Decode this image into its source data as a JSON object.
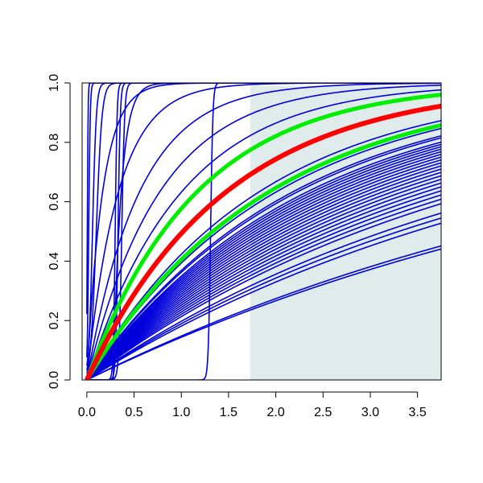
{
  "chart_data": {
    "type": "line",
    "title": "",
    "xlabel": "",
    "ylabel": "",
    "xlim": [
      -0.05,
      3.75
    ],
    "ylim": [
      0,
      1
    ],
    "grid": false,
    "legend": "none",
    "x_ticks": [
      "0.0",
      "0.5",
      "1.0",
      "1.5",
      "2.0",
      "2.5",
      "3.0",
      "3.5"
    ],
    "y_ticks": [
      "0.0",
      "0.2",
      "0.4",
      "0.6",
      "0.8",
      "1.0"
    ],
    "shaded_region": {
      "x_from": 1.73,
      "x_to": 3.75,
      "y_from": 0,
      "y_to": 0.99,
      "color": "#e0ecec"
    },
    "colors": {
      "samples": "#0000dd",
      "estimate": "#ff0000",
      "bounds": "#00ee00",
      "shade": "#e0ecec"
    },
    "series": [
      {
        "role": "sample",
        "model": "exp",
        "rate": 6.0,
        "shift": 0
      },
      {
        "role": "sample",
        "model": "exp",
        "rate": 3.0,
        "shift": 0
      },
      {
        "role": "sample",
        "model": "exp",
        "rate": 1.8,
        "shift": 0
      },
      {
        "role": "sample",
        "model": "exp",
        "rate": 1.3,
        "shift": 0
      },
      {
        "role": "sample",
        "model": "exp",
        "rate": 1.0,
        "shift": 0
      },
      {
        "role": "sample",
        "model": "exp",
        "rate": 0.55,
        "shift": 0
      },
      {
        "role": "sample",
        "model": "exp",
        "rate": 0.5,
        "shift": 0
      },
      {
        "role": "sample",
        "model": "exp",
        "rate": 0.45,
        "shift": 0
      },
      {
        "role": "sample",
        "model": "exp",
        "rate": 0.42,
        "shift": 0
      },
      {
        "role": "sample",
        "model": "exp",
        "rate": 0.4,
        "shift": 0
      },
      {
        "role": "sample",
        "model": "exp",
        "rate": 0.38,
        "shift": 0
      },
      {
        "role": "sample",
        "model": "exp",
        "rate": 0.36,
        "shift": 0
      },
      {
        "role": "sample",
        "model": "exp",
        "rate": 0.34,
        "shift": 0
      },
      {
        "role": "sample",
        "model": "exp",
        "rate": 0.32,
        "shift": 0
      },
      {
        "role": "sample",
        "model": "exp",
        "rate": 0.3,
        "shift": 0
      },
      {
        "role": "sample",
        "model": "exp",
        "rate": 0.28,
        "shift": 0
      },
      {
        "role": "sample",
        "model": "exp",
        "rate": 0.26,
        "shift": 0
      },
      {
        "role": "sample",
        "model": "exp",
        "rate": 0.24,
        "shift": 0
      },
      {
        "role": "sample",
        "model": "exp",
        "rate": 0.22,
        "shift": 0
      },
      {
        "role": "sample",
        "model": "exp",
        "rate": 0.155,
        "shift": 0
      },
      {
        "role": "sample",
        "model": "exp",
        "rate": 0.16,
        "shift": 0
      },
      {
        "role": "sample",
        "model": "exp",
        "rate": 0.2,
        "shift": 0
      },
      {
        "role": "sample",
        "model": "exp",
        "rate": 0.21,
        "shift": 0
      },
      {
        "role": "sample",
        "model": "exp",
        "rate": 0.25,
        "shift": 0
      },
      {
        "role": "sample",
        "model": "exp",
        "rate": 0.27,
        "shift": 0
      },
      {
        "role": "sample",
        "model": "exp",
        "rate": 0.29,
        "shift": 0
      },
      {
        "role": "sample",
        "model": "exp",
        "rate": 0.31,
        "shift": 0
      },
      {
        "role": "sample",
        "model": "exp",
        "rate": 0.33,
        "shift": 0
      },
      {
        "role": "sample",
        "model": "exp",
        "rate": 0.35,
        "shift": 0
      },
      {
        "role": "sample",
        "model": "exp",
        "rate": 0.37,
        "shift": 0
      },
      {
        "role": "sample",
        "model": "exp",
        "rate": 0.39,
        "shift": 0
      },
      {
        "role": "sample",
        "model": "exp",
        "rate": 0.41,
        "shift": 0
      },
      {
        "role": "sample",
        "model": "exp",
        "rate": 0.43,
        "shift": 0
      },
      {
        "role": "sample",
        "model": "exp",
        "rate": 0.46,
        "shift": 0
      },
      {
        "role": "sample",
        "model": "sigmoid",
        "center": 0.005,
        "width": 0.004
      },
      {
        "role": "sample",
        "model": "sigmoid",
        "center": 0.02,
        "width": 0.008
      },
      {
        "role": "sample",
        "model": "sigmoid",
        "center": 0.06,
        "width": 0.02
      },
      {
        "role": "sample",
        "model": "sigmoid",
        "center": 0.1,
        "width": 0.03
      },
      {
        "role": "sample",
        "model": "sigmoid",
        "center": 0.3,
        "width": 0.01
      },
      {
        "role": "sample",
        "model": "sigmoid",
        "center": 0.33,
        "width": 0.012
      },
      {
        "role": "sample",
        "model": "sigmoid",
        "center": 0.37,
        "width": 0.015
      },
      {
        "role": "sample",
        "model": "sigmoid",
        "center": 1.31,
        "width": 0.012
      },
      {
        "role": "sample",
        "model": "shifted_exp",
        "rate": 12,
        "shift": 0.28
      },
      {
        "role": "estimate",
        "model": "exp",
        "rate": 0.68,
        "shift": 0
      },
      {
        "role": "bound",
        "model": "exp",
        "rate": 0.86,
        "shift": 0
      },
      {
        "role": "bound",
        "model": "exp",
        "rate": 0.52,
        "shift": 0
      }
    ]
  }
}
